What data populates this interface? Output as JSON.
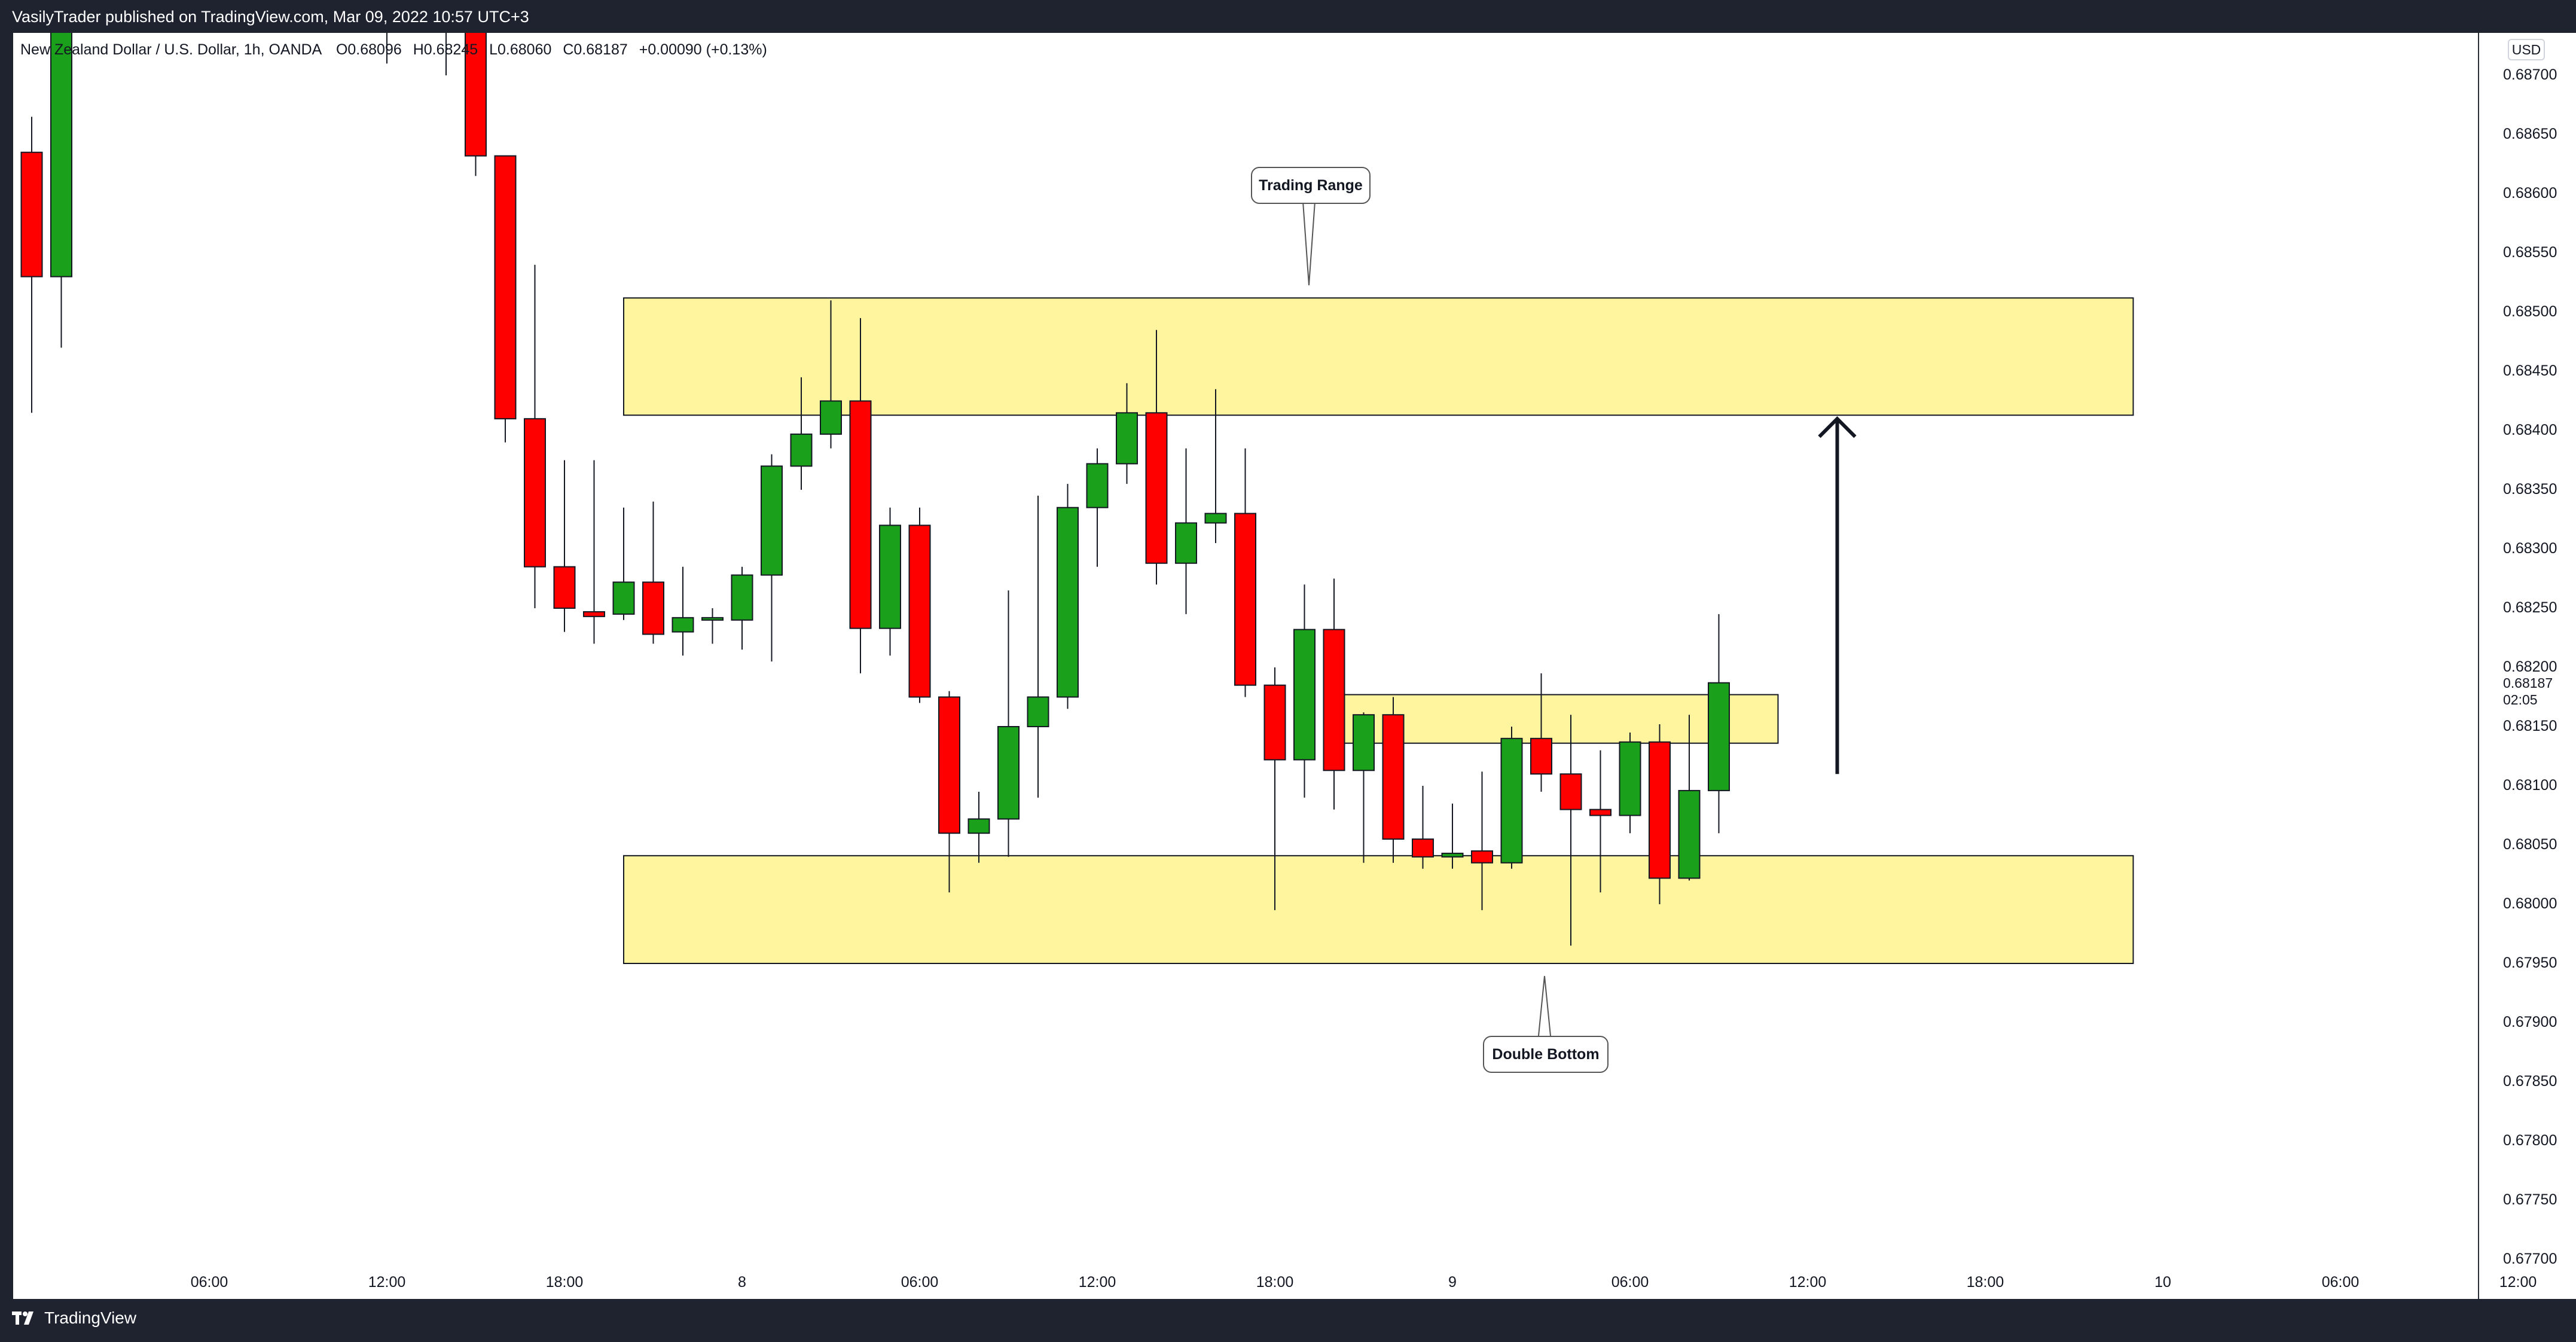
{
  "header": {
    "published_text": "VasilyTrader published on TradingView.com, Mar 09, 2022 10:57 UTC+3"
  },
  "legend": {
    "symbol": "New Zealand Dollar / U.S. Dollar, 1h, OANDA",
    "open": "O0.68096",
    "high": "H0.68245",
    "low": "L0.68060",
    "close": "C0.68187",
    "change": "+0.00090 (+0.13%)"
  },
  "footer": {
    "brand": "TradingView"
  },
  "annotations": {
    "trading_range": "Trading Range",
    "double_bottom": "Double Bottom"
  },
  "colors": {
    "up": "#1aa01a",
    "down": "#ff0000",
    "zone": "#fef59e",
    "outline": "#131722"
  },
  "chart_data": {
    "type": "candlestick",
    "title": "",
    "currency": "USD",
    "interval": "1h",
    "ylim": [
      0.67675,
      0.68725
    ],
    "price_ticks": [
      "0.68700",
      "0.68650",
      "0.68600",
      "0.68550",
      "0.68500",
      "0.68450",
      "0.68400",
      "0.68350",
      "0.68300",
      "0.68250",
      "0.68200",
      "0.68150",
      "0.68100",
      "0.68050",
      "0.68000",
      "0.67950",
      "0.67900",
      "0.67850",
      "0.67800",
      "0.67750",
      "0.67700"
    ],
    "last_price": "0.68187",
    "countdown": "02:05",
    "time_ticks": [
      {
        "label": "06:00",
        "x": 6
      },
      {
        "label": "12:00",
        "x": 12
      },
      {
        "label": "18:00",
        "x": 18
      },
      {
        "label": "8",
        "x": 24
      },
      {
        "label": "06:00",
        "x": 30
      },
      {
        "label": "12:00",
        "x": 36
      },
      {
        "label": "18:00",
        "x": 42
      },
      {
        "label": "9",
        "x": 48
      },
      {
        "label": "06:00",
        "x": 54
      },
      {
        "label": "12:00",
        "x": 60
      },
      {
        "label": "18:00",
        "x": 66
      },
      {
        "label": "10",
        "x": 72
      },
      {
        "label": "06:00",
        "x": 78
      },
      {
        "label": "12:00",
        "x": 84
      }
    ],
    "candles": [
      {
        "x": 0,
        "o": 0.68635,
        "h": 0.68665,
        "l": 0.68415,
        "c": 0.6853
      },
      {
        "x": 1,
        "o": 0.6853,
        "h": 0.689,
        "l": 0.6847,
        "c": 0.6885
      },
      {
        "x": 12,
        "o": 0.6888,
        "h": 0.6892,
        "l": 0.6871,
        "c": 0.6887
      },
      {
        "x": 14,
        "o": 0.6888,
        "h": 0.6892,
        "l": 0.687,
        "c": 0.689
      },
      {
        "x": 15,
        "o": 0.6876,
        "h": 0.688,
        "l": 0.68615,
        "c": 0.68632
      },
      {
        "x": 16,
        "o": 0.68632,
        "h": 0.68632,
        "l": 0.6839,
        "c": 0.6841
      },
      {
        "x": 17,
        "o": 0.6841,
        "h": 0.6854,
        "l": 0.6825,
        "c": 0.68285
      },
      {
        "x": 18,
        "o": 0.68285,
        "h": 0.68375,
        "l": 0.6823,
        "c": 0.6825
      },
      {
        "x": 19,
        "o": 0.68247,
        "h": 0.68375,
        "l": 0.6822,
        "c": 0.68243
      },
      {
        "x": 20,
        "o": 0.68245,
        "h": 0.68335,
        "l": 0.6824,
        "c": 0.68272
      },
      {
        "x": 21,
        "o": 0.68272,
        "h": 0.6834,
        "l": 0.6822,
        "c": 0.68228
      },
      {
        "x": 22,
        "o": 0.6823,
        "h": 0.68285,
        "l": 0.6821,
        "c": 0.68242
      },
      {
        "x": 23,
        "o": 0.6824,
        "h": 0.6825,
        "l": 0.6822,
        "c": 0.68242
      },
      {
        "x": 24,
        "o": 0.6824,
        "h": 0.68285,
        "l": 0.68215,
        "c": 0.68278
      },
      {
        "x": 25,
        "o": 0.68278,
        "h": 0.6838,
        "l": 0.68205,
        "c": 0.6837
      },
      {
        "x": 26,
        "o": 0.6837,
        "h": 0.68445,
        "l": 0.6835,
        "c": 0.68397
      },
      {
        "x": 27,
        "o": 0.68397,
        "h": 0.6851,
        "l": 0.68385,
        "c": 0.68425
      },
      {
        "x": 28,
        "o": 0.68425,
        "h": 0.68495,
        "l": 0.68195,
        "c": 0.68233
      },
      {
        "x": 29,
        "o": 0.68233,
        "h": 0.68335,
        "l": 0.6821,
        "c": 0.6832
      },
      {
        "x": 30,
        "o": 0.6832,
        "h": 0.68335,
        "l": 0.6817,
        "c": 0.68175
      },
      {
        "x": 31,
        "o": 0.68175,
        "h": 0.6818,
        "l": 0.6801,
        "c": 0.6806
      },
      {
        "x": 32,
        "o": 0.6806,
        "h": 0.68095,
        "l": 0.68035,
        "c": 0.68072
      },
      {
        "x": 33,
        "o": 0.68072,
        "h": 0.68265,
        "l": 0.6804,
        "c": 0.6815
      },
      {
        "x": 34,
        "o": 0.6815,
        "h": 0.68345,
        "l": 0.6809,
        "c": 0.68175
      },
      {
        "x": 35,
        "o": 0.68175,
        "h": 0.68355,
        "l": 0.68165,
        "c": 0.68335
      },
      {
        "x": 36,
        "o": 0.68335,
        "h": 0.68385,
        "l": 0.68285,
        "c": 0.68372
      },
      {
        "x": 37,
        "o": 0.68372,
        "h": 0.6844,
        "l": 0.68355,
        "c": 0.68415
      },
      {
        "x": 38,
        "o": 0.68415,
        "h": 0.68485,
        "l": 0.6827,
        "c": 0.68288
      },
      {
        "x": 39,
        "o": 0.68288,
        "h": 0.68385,
        "l": 0.68245,
        "c": 0.68322
      },
      {
        "x": 40,
        "o": 0.68322,
        "h": 0.68435,
        "l": 0.68305,
        "c": 0.6833
      },
      {
        "x": 41,
        "o": 0.6833,
        "h": 0.68385,
        "l": 0.68175,
        "c": 0.68185
      },
      {
        "x": 42,
        "o": 0.68185,
        "h": 0.682,
        "l": 0.67995,
        "c": 0.68122
      },
      {
        "x": 43,
        "o": 0.68122,
        "h": 0.6827,
        "l": 0.6809,
        "c": 0.68232
      },
      {
        "x": 44,
        "o": 0.68232,
        "h": 0.68275,
        "l": 0.6808,
        "c": 0.68113
      },
      {
        "x": 45,
        "o": 0.68113,
        "h": 0.68162,
        "l": 0.68035,
        "c": 0.6816
      },
      {
        "x": 46,
        "o": 0.6816,
        "h": 0.68175,
        "l": 0.68035,
        "c": 0.68055
      },
      {
        "x": 47,
        "o": 0.68055,
        "h": 0.681,
        "l": 0.6803,
        "c": 0.6804
      },
      {
        "x": 48,
        "o": 0.6804,
        "h": 0.68085,
        "l": 0.6803,
        "c": 0.68043
      },
      {
        "x": 49,
        "o": 0.68045,
        "h": 0.68112,
        "l": 0.67995,
        "c": 0.68035
      },
      {
        "x": 50,
        "o": 0.68035,
        "h": 0.6815,
        "l": 0.6803,
        "c": 0.6814
      },
      {
        "x": 51,
        "o": 0.6814,
        "h": 0.68195,
        "l": 0.68095,
        "c": 0.6811
      },
      {
        "x": 52,
        "o": 0.6811,
        "h": 0.6816,
        "l": 0.67965,
        "c": 0.6808
      },
      {
        "x": 53,
        "o": 0.6808,
        "h": 0.6813,
        "l": 0.6801,
        "c": 0.68075
      },
      {
        "x": 54,
        "o": 0.68075,
        "h": 0.68145,
        "l": 0.6806,
        "c": 0.68137
      },
      {
        "x": 55,
        "o": 0.68137,
        "h": 0.68152,
        "l": 0.68,
        "c": 0.68022
      },
      {
        "x": 56,
        "o": 0.68022,
        "h": 0.6816,
        "l": 0.6802,
        "c": 0.68096
      },
      {
        "x": 57,
        "o": 0.68096,
        "h": 0.68245,
        "l": 0.6806,
        "c": 0.68187
      }
    ],
    "zones": [
      {
        "name": "trading-range-top",
        "x1": 20,
        "x2": 71,
        "y1": 0.68413,
        "y2": 0.68512
      },
      {
        "name": "resistance-zone",
        "x1": 44,
        "x2": 59,
        "y1": 0.68136,
        "y2": 0.68177
      },
      {
        "name": "support-zone",
        "x1": 20,
        "x2": 71,
        "y1": 0.6795,
        "y2": 0.68041
      }
    ],
    "arrow": {
      "x": 61,
      "from": 0.6811,
      "to": 0.6841
    }
  }
}
